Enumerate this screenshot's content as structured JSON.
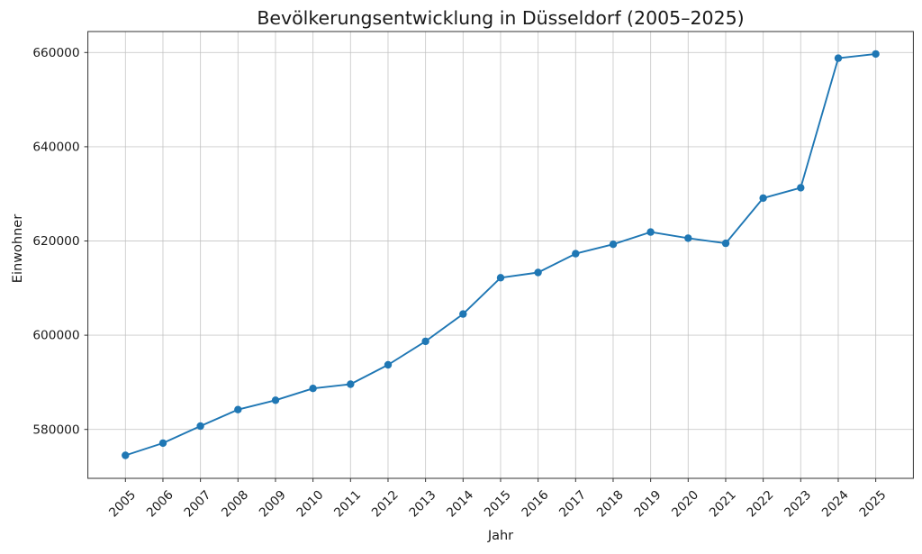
{
  "chart_data": {
    "type": "line",
    "title": "Bevölkerungsentwicklung in Düsseldorf (2005–2025)",
    "xlabel": "Jahr",
    "ylabel": "Einwohner",
    "categories": [
      2005,
      2006,
      2007,
      2008,
      2009,
      2010,
      2011,
      2012,
      2013,
      2014,
      2015,
      2016,
      2017,
      2018,
      2019,
      2020,
      2021,
      2022,
      2023,
      2024,
      2025
    ],
    "series": [
      {
        "name": "Einwohner",
        "values": [
          574500,
          577100,
          580700,
          584200,
          586200,
          588700,
          589600,
          593700,
          598700,
          604500,
          612200,
          613300,
          617300,
          619300,
          621900,
          620600,
          619500,
          629100,
          631300,
          658800,
          659700
        ]
      }
    ],
    "yticks": [
      580000,
      600000,
      620000,
      640000,
      660000
    ],
    "ylim": [
      569600,
      664460
    ],
    "xlim_years": [
      2004,
      2026
    ],
    "xtick_rotation": 45,
    "grid": true,
    "legend": "none",
    "line_color": "#1f77b4",
    "marker": "circle",
    "grid_color": "#c2c2c2",
    "spine_color": "#333333",
    "text_color": "#1a1a1a",
    "background": "#ffffff"
  }
}
